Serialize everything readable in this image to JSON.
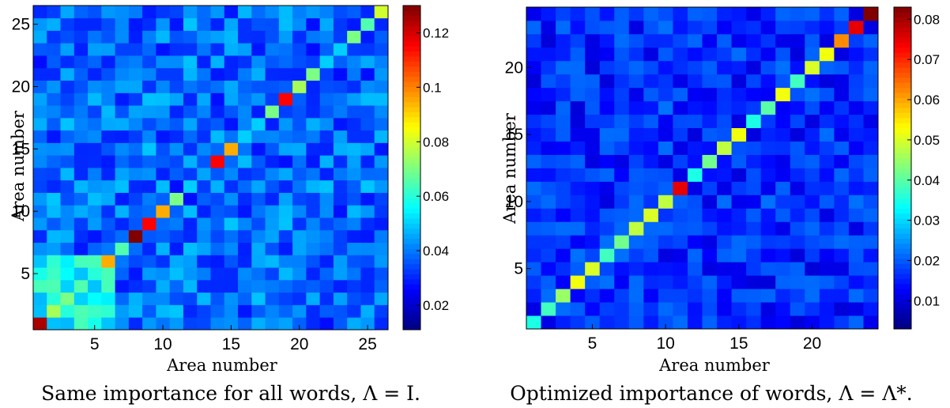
{
  "chart_data": [
    {
      "type": "heatmap",
      "n": 26,
      "xlabel": "Area number",
      "ylabel": "Area number",
      "xticks": [
        5,
        10,
        15,
        20,
        25
      ],
      "yticks": [
        5,
        10,
        15,
        20,
        25
      ],
      "colorbar": {
        "min": 0.011,
        "max": 0.13,
        "ticks": [
          0.02,
          0.04,
          0.06,
          0.08,
          0.1,
          0.12
        ],
        "labels": [
          "0.02",
          "0.04",
          "0.06",
          "0.08",
          "0.1",
          "0.12"
        ]
      },
      "colormap": "jet",
      "diagonal": [
        0.125,
        0.075,
        0.07,
        0.065,
        0.06,
        0.095,
        0.065,
        0.13,
        0.115,
        0.095,
        0.07,
        0.05,
        0.045,
        0.115,
        0.095,
        0.05,
        0.05,
        0.07,
        0.115,
        0.075,
        0.07,
        0.05,
        0.05,
        0.07,
        0.065,
        0.08
      ],
      "caption": "Same importance for all words, Λ = I."
    },
    {
      "type": "heatmap",
      "n": 24,
      "xlabel": "Area number",
      "ylabel": "Area number",
      "xticks": [
        5,
        10,
        15,
        20
      ],
      "yticks": [
        5,
        10,
        15,
        20
      ],
      "colorbar": {
        "min": 0.003,
        "max": 0.083,
        "ticks": [
          0.01,
          0.02,
          0.03,
          0.04,
          0.05,
          0.06,
          0.07,
          0.08
        ],
        "labels": [
          "0.01",
          "0.02",
          "0.03",
          "0.04",
          "0.05",
          "0.06",
          "0.07",
          "0.08"
        ]
      },
      "colormap": "jet",
      "diagonal": [
        0.035,
        0.038,
        0.045,
        0.052,
        0.05,
        0.038,
        0.042,
        0.048,
        0.05,
        0.048,
        0.075,
        0.035,
        0.042,
        0.048,
        0.052,
        0.035,
        0.04,
        0.052,
        0.038,
        0.05,
        0.052,
        0.062,
        0.075,
        0.083
      ],
      "caption": "Optimized importance of words, Λ = Λ*."
    }
  ]
}
